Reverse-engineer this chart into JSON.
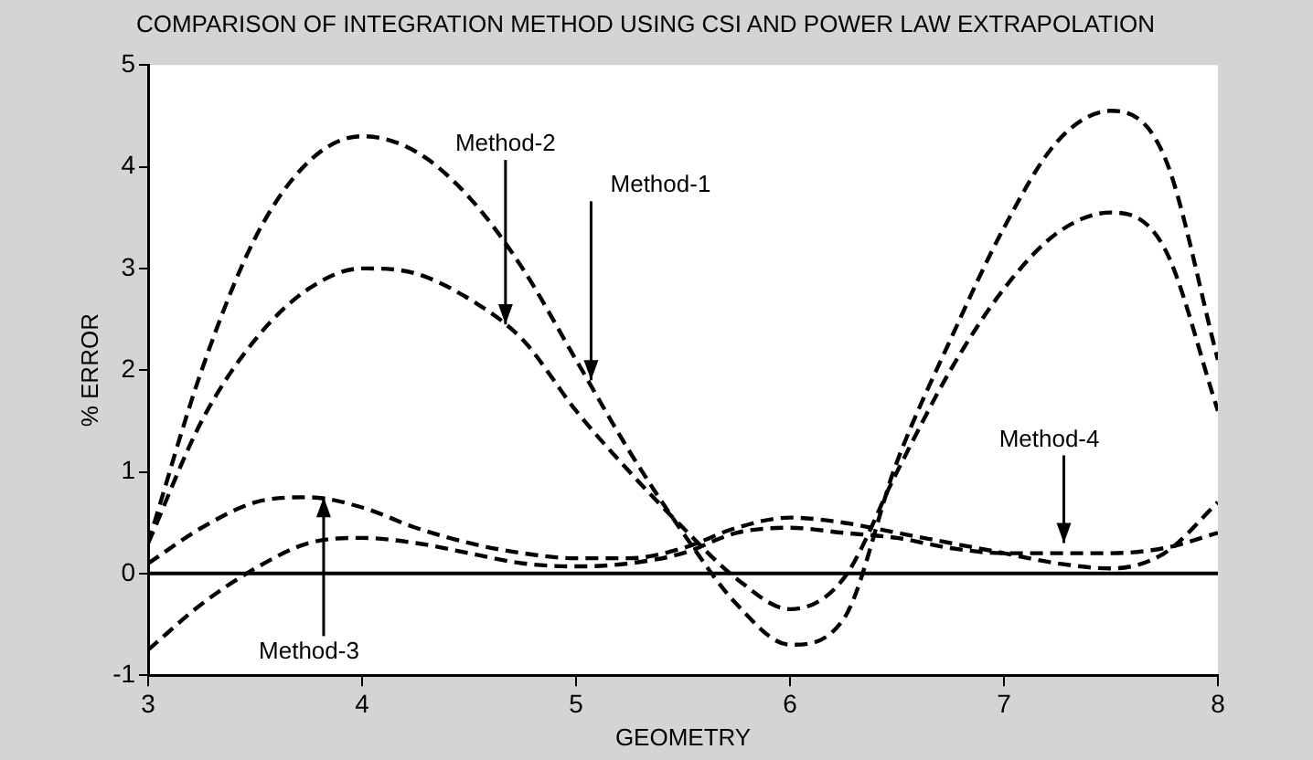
{
  "chart_data": {
    "type": "line",
    "title": "COMPARISON OF INTEGRATION METHOD USING CSI AND POWER LAW EXTRAPOLATION",
    "xlabel": "GEOMETRY",
    "ylabel": "% ERROR",
    "x": [
      3,
      3.25,
      3.5,
      3.75,
      4,
      4.25,
      4.5,
      4.75,
      5,
      5.25,
      5.5,
      5.75,
      6,
      6.25,
      6.5,
      6.75,
      7,
      7.25,
      7.5,
      7.75,
      8
    ],
    "series": [
      {
        "color": "#000000",
        "values": [
          0.3,
          2.0,
          3.3,
          4.05,
          4.3,
          4.15,
          3.7,
          3.0,
          2.1,
          1.2,
          0.4,
          -0.3,
          -0.7,
          -0.45,
          1.1,
          2.3,
          3.4,
          4.25,
          4.55,
          4.1,
          2.1
        ]
      },
      {
        "color": "#000000",
        "values": [
          0.3,
          1.5,
          2.3,
          2.8,
          3.0,
          2.95,
          2.7,
          2.3,
          1.6,
          1.0,
          0.45,
          -0.05,
          -0.35,
          -0.05,
          1.0,
          2.0,
          2.8,
          3.35,
          3.55,
          3.2,
          1.6
        ]
      },
      {
        "color": "#000000",
        "values": [
          -0.75,
          -0.3,
          0.05,
          0.3,
          0.35,
          0.3,
          0.2,
          0.1,
          0.07,
          0.1,
          0.2,
          0.4,
          0.45,
          0.4,
          0.35,
          0.25,
          0.2,
          0.2,
          0.2,
          0.25,
          0.4
        ]
      },
      {
        "color": "#000000",
        "values": [
          0.1,
          0.45,
          0.7,
          0.75,
          0.65,
          0.45,
          0.3,
          0.2,
          0.15,
          0.15,
          0.25,
          0.45,
          0.55,
          0.5,
          0.4,
          0.3,
          0.2,
          0.1,
          0.05,
          0.2,
          0.7
        ]
      }
    ],
    "xlim": [
      3,
      8
    ],
    "xticks": [
      3,
      4,
      5,
      6,
      7,
      8
    ],
    "ylim": [
      -1,
      5
    ],
    "yticks": [
      -1,
      0,
      1,
      2,
      3,
      4,
      5
    ],
    "ref_lines": [
      {
        "axis": "y",
        "value": 0,
        "color": "#000000",
        "line_style": "solid"
      }
    ],
    "annotations": [
      {
        "text": "Method-2",
        "x": 4.67,
        "y": 2.45
      },
      {
        "text": "Method-1",
        "x": 5.07,
        "y": 1.9
      },
      {
        "text": "Method-4",
        "x": 7.28,
        "y": 0.3
      },
      {
        "text": "Method-3",
        "x": 3.82,
        "y": 0.75
      }
    ],
    "grid": false,
    "legend": false,
    "marker": "none",
    "line_style": "dashed"
  }
}
